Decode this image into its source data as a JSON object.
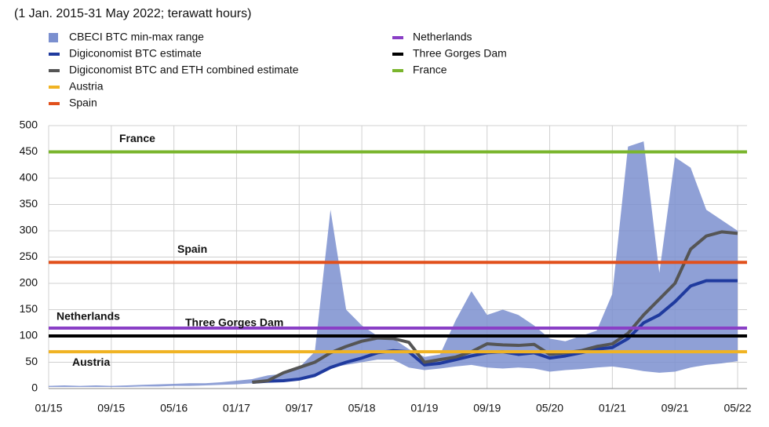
{
  "chart_data": {
    "type": "line",
    "subtitle": "(1 Jan. 2015-31 May 2022; terawatt hours)",
    "categories": [
      "01/15",
      null,
      null,
      null,
      "09/15",
      null,
      null,
      null,
      "05/16",
      null,
      null,
      null,
      "01/17",
      null,
      null,
      null,
      "09/17",
      null,
      null,
      null,
      "05/18",
      null,
      null,
      null,
      "01/19",
      null,
      null,
      null,
      "09/19",
      null,
      null,
      null,
      "05/20",
      null,
      null,
      null,
      "01/21",
      null,
      null,
      null,
      "09/21",
      null,
      null,
      null,
      "05/22"
    ],
    "ylim": [
      0,
      500
    ],
    "yticks": [
      0,
      50,
      100,
      150,
      200,
      250,
      300,
      350,
      400,
      450,
      500
    ],
    "grid": true,
    "series": [
      {
        "name": "CBECI BTC min-max range",
        "type": "area-range",
        "color": "#7b8fcf",
        "high": [
          5,
          6,
          5,
          6,
          5,
          6,
          7,
          8,
          9,
          10,
          10,
          12,
          15,
          18,
          25,
          28,
          40,
          70,
          340,
          150,
          120,
          100,
          95,
          75,
          60,
          65,
          130,
          185,
          140,
          150,
          140,
          120,
          95,
          90,
          100,
          110,
          180,
          460,
          470,
          220,
          440,
          420,
          340,
          320,
          300
        ],
        "low": [
          3,
          3,
          3,
          3,
          3,
          3,
          4,
          4,
          5,
          5,
          6,
          7,
          8,
          10,
          12,
          15,
          20,
          28,
          40,
          45,
          50,
          55,
          55,
          40,
          35,
          38,
          42,
          45,
          40,
          38,
          40,
          38,
          32,
          35,
          37,
          40,
          42,
          38,
          33,
          30,
          32,
          40,
          45,
          48,
          52
        ]
      },
      {
        "name": "Digiconomist BTC estimate",
        "type": "line",
        "color": "#1f3a9e",
        "values": [
          null,
          null,
          null,
          null,
          null,
          null,
          null,
          null,
          null,
          null,
          null,
          null,
          null,
          12,
          14,
          15,
          18,
          25,
          40,
          50,
          58,
          68,
          72,
          70,
          45,
          48,
          55,
          62,
          68,
          70,
          65,
          68,
          58,
          62,
          68,
          75,
          78,
          95,
          125,
          140,
          165,
          195,
          205,
          205,
          205
        ]
      },
      {
        "name": "Digiconomist BTC and ETH combined estimate",
        "type": "line",
        "color": "#555555",
        "values": [
          null,
          null,
          null,
          null,
          null,
          null,
          null,
          null,
          null,
          null,
          null,
          null,
          null,
          12,
          15,
          30,
          40,
          50,
          68,
          80,
          90,
          96,
          95,
          88,
          50,
          55,
          60,
          70,
          85,
          83,
          82,
          84,
          65,
          68,
          72,
          80,
          85,
          105,
          140,
          170,
          200,
          265,
          290,
          298,
          295
        ]
      },
      {
        "name": "Austria",
        "type": "hline",
        "color": "#f0b323",
        "value": 70
      },
      {
        "name": "Spain",
        "type": "hline",
        "color": "#e1501c",
        "value": 240
      },
      {
        "name": "Netherlands",
        "type": "hline",
        "color": "#8a3fc6",
        "value": 115
      },
      {
        "name": "Three Gorges Dam",
        "type": "hline",
        "color": "#000000",
        "value": 100
      },
      {
        "name": "France",
        "type": "hline",
        "color": "#7ab52d",
        "value": 450
      }
    ]
  }
}
